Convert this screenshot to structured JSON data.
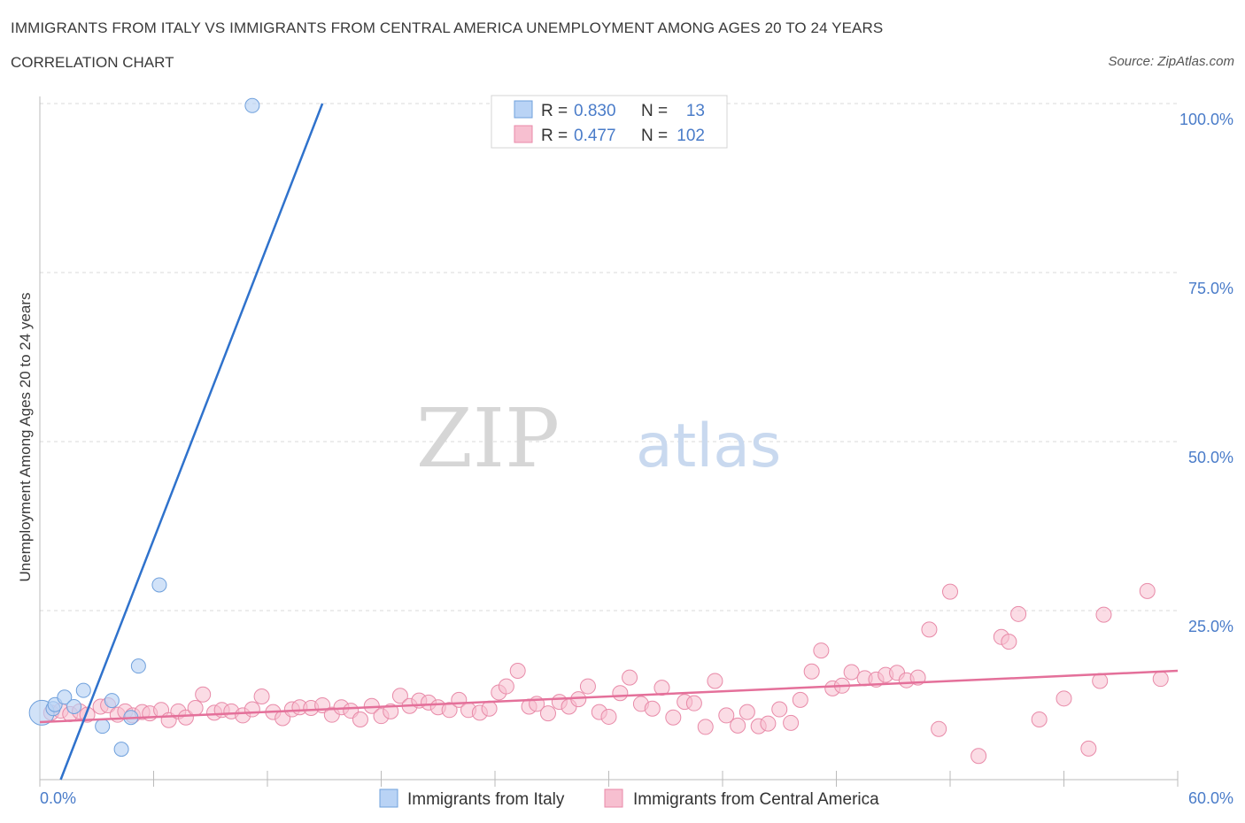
{
  "header": {
    "title": "IMMIGRANTS FROM ITALY VS IMMIGRANTS FROM CENTRAL AMERICA UNEMPLOYMENT AMONG AGES 20 TO 24 YEARS",
    "subtitle": "CORRELATION CHART",
    "source": "Source: ZipAtlas.com"
  },
  "watermark": {
    "zip": "ZIP",
    "atlas": "atlas"
  },
  "colors": {
    "italy_fill": "#b9d3f5",
    "italy_stroke": "#6fa0dc",
    "italy_line": "#2f72cc",
    "ca_fill": "#f7bfd0",
    "ca_stroke": "#e88aa8",
    "ca_line": "#e4709a",
    "tick_label": "#4a7cc9",
    "grid": "#d8d8d8"
  },
  "legend_box": {
    "rows": [
      {
        "r_label": "R = ",
        "r_value": "0.830",
        "n_label": "N = ",
        "n_value": "13"
      },
      {
        "r_label": "R = ",
        "r_value": "0.477",
        "n_label": "N = ",
        "n_value": "102"
      }
    ]
  },
  "chart_data": {
    "type": "scatter",
    "title": "IMMIGRANTS FROM ITALY VS IMMIGRANTS FROM CENTRAL AMERICA UNEMPLOYMENT AMONG AGES 20 TO 24 YEARS",
    "xlabel": "",
    "ylabel": "Unemployment Among Ages 20 to 24 years",
    "xlim": [
      0,
      60
    ],
    "ylim": [
      0,
      100
    ],
    "x_tick_labels": [
      "0.0%",
      "60.0%"
    ],
    "y_ticks": [
      25,
      50,
      75,
      100
    ],
    "y_tick_labels": [
      "25.0%",
      "50.0%",
      "75.0%",
      "100.0%"
    ],
    "grid": true,
    "legend_position": "bottom-center",
    "series": [
      {
        "name": "Immigrants from Italy",
        "R": 0.83,
        "N": 13,
        "trend": {
          "x": [
            1.1,
            14.9
          ],
          "y": [
            0,
            100
          ]
        },
        "points": [
          [
            0.1,
            9.9
          ],
          [
            0.7,
            10.5
          ],
          [
            0.8,
            11.1
          ],
          [
            1.3,
            12.2
          ],
          [
            1.8,
            10.8
          ],
          [
            2.3,
            13.2
          ],
          [
            3.3,
            7.9
          ],
          [
            3.8,
            11.7
          ],
          [
            4.3,
            4.5
          ],
          [
            4.8,
            9.2
          ],
          [
            5.2,
            16.8
          ],
          [
            6.3,
            28.8
          ],
          [
            11.2,
            99.7
          ]
        ]
      },
      {
        "name": "Immigrants from Central America",
        "R": 0.477,
        "N": 102,
        "trend": {
          "x": [
            0,
            60
          ],
          "y": [
            8.5,
            16.1
          ]
        },
        "points": [
          [
            0.6,
            9.9
          ],
          [
            1.1,
            10.2
          ],
          [
            1.6,
            9.7
          ],
          [
            2.1,
            10.1
          ],
          [
            2.5,
            9.6
          ],
          [
            3.2,
            10.8
          ],
          [
            3.6,
            11.0
          ],
          [
            4.1,
            9.6
          ],
          [
            4.5,
            10.1
          ],
          [
            4.9,
            9.5
          ],
          [
            5.4,
            10.0
          ],
          [
            5.8,
            9.8
          ],
          [
            6.4,
            10.3
          ],
          [
            6.8,
            8.8
          ],
          [
            7.3,
            10.1
          ],
          [
            7.7,
            9.2
          ],
          [
            8.2,
            10.6
          ],
          [
            8.6,
            12.6
          ],
          [
            9.2,
            9.9
          ],
          [
            9.6,
            10.3
          ],
          [
            10.1,
            10.1
          ],
          [
            10.7,
            9.5
          ],
          [
            11.2,
            10.4
          ],
          [
            11.7,
            12.3
          ],
          [
            12.3,
            10.0
          ],
          [
            12.8,
            9.1
          ],
          [
            13.3,
            10.4
          ],
          [
            13.7,
            10.7
          ],
          [
            14.3,
            10.6
          ],
          [
            14.9,
            11.0
          ],
          [
            15.4,
            9.6
          ],
          [
            15.9,
            10.7
          ],
          [
            16.4,
            10.2
          ],
          [
            16.9,
            8.9
          ],
          [
            17.5,
            10.9
          ],
          [
            18.0,
            9.4
          ],
          [
            18.5,
            10.1
          ],
          [
            19.0,
            12.4
          ],
          [
            19.5,
            10.9
          ],
          [
            20.0,
            11.7
          ],
          [
            20.5,
            11.4
          ],
          [
            21.0,
            10.7
          ],
          [
            21.6,
            10.3
          ],
          [
            22.1,
            11.8
          ],
          [
            22.6,
            10.3
          ],
          [
            23.2,
            9.9
          ],
          [
            23.7,
            10.5
          ],
          [
            24.2,
            12.9
          ],
          [
            24.6,
            13.8
          ],
          [
            25.2,
            16.1
          ],
          [
            25.8,
            10.8
          ],
          [
            26.2,
            11.2
          ],
          [
            26.8,
            9.8
          ],
          [
            27.4,
            11.5
          ],
          [
            27.9,
            10.8
          ],
          [
            28.4,
            11.9
          ],
          [
            28.9,
            13.8
          ],
          [
            29.5,
            10.0
          ],
          [
            30.0,
            9.3
          ],
          [
            30.6,
            12.8
          ],
          [
            31.1,
            15.1
          ],
          [
            31.7,
            11.2
          ],
          [
            32.3,
            10.5
          ],
          [
            32.8,
            13.6
          ],
          [
            33.4,
            9.2
          ],
          [
            34.0,
            11.5
          ],
          [
            34.5,
            11.3
          ],
          [
            35.1,
            7.8
          ],
          [
            35.6,
            14.6
          ],
          [
            36.2,
            9.5
          ],
          [
            36.8,
            8.0
          ],
          [
            37.3,
            10.0
          ],
          [
            37.9,
            7.9
          ],
          [
            38.4,
            8.3
          ],
          [
            39.0,
            10.4
          ],
          [
            39.6,
            8.4
          ],
          [
            40.1,
            11.8
          ],
          [
            40.7,
            16.0
          ],
          [
            41.2,
            19.1
          ],
          [
            41.8,
            13.5
          ],
          [
            42.3,
            13.9
          ],
          [
            42.8,
            15.9
          ],
          [
            43.5,
            15.0
          ],
          [
            44.1,
            14.8
          ],
          [
            44.6,
            15.5
          ],
          [
            45.2,
            15.8
          ],
          [
            45.7,
            14.7
          ],
          [
            46.3,
            15.1
          ],
          [
            46.9,
            22.2
          ],
          [
            47.4,
            7.5
          ],
          [
            48.0,
            27.8
          ],
          [
            49.5,
            3.5
          ],
          [
            50.7,
            21.1
          ],
          [
            51.1,
            20.4
          ],
          [
            51.6,
            24.5
          ],
          [
            52.7,
            8.9
          ],
          [
            54.0,
            12.0
          ],
          [
            55.3,
            4.6
          ],
          [
            55.9,
            14.6
          ],
          [
            56.1,
            24.4
          ],
          [
            58.4,
            27.9
          ],
          [
            59.1,
            14.9
          ]
        ]
      }
    ]
  },
  "legend": {
    "items": [
      {
        "label": "Immigrants from Italy"
      },
      {
        "label": "Immigrants from Central America"
      }
    ]
  }
}
